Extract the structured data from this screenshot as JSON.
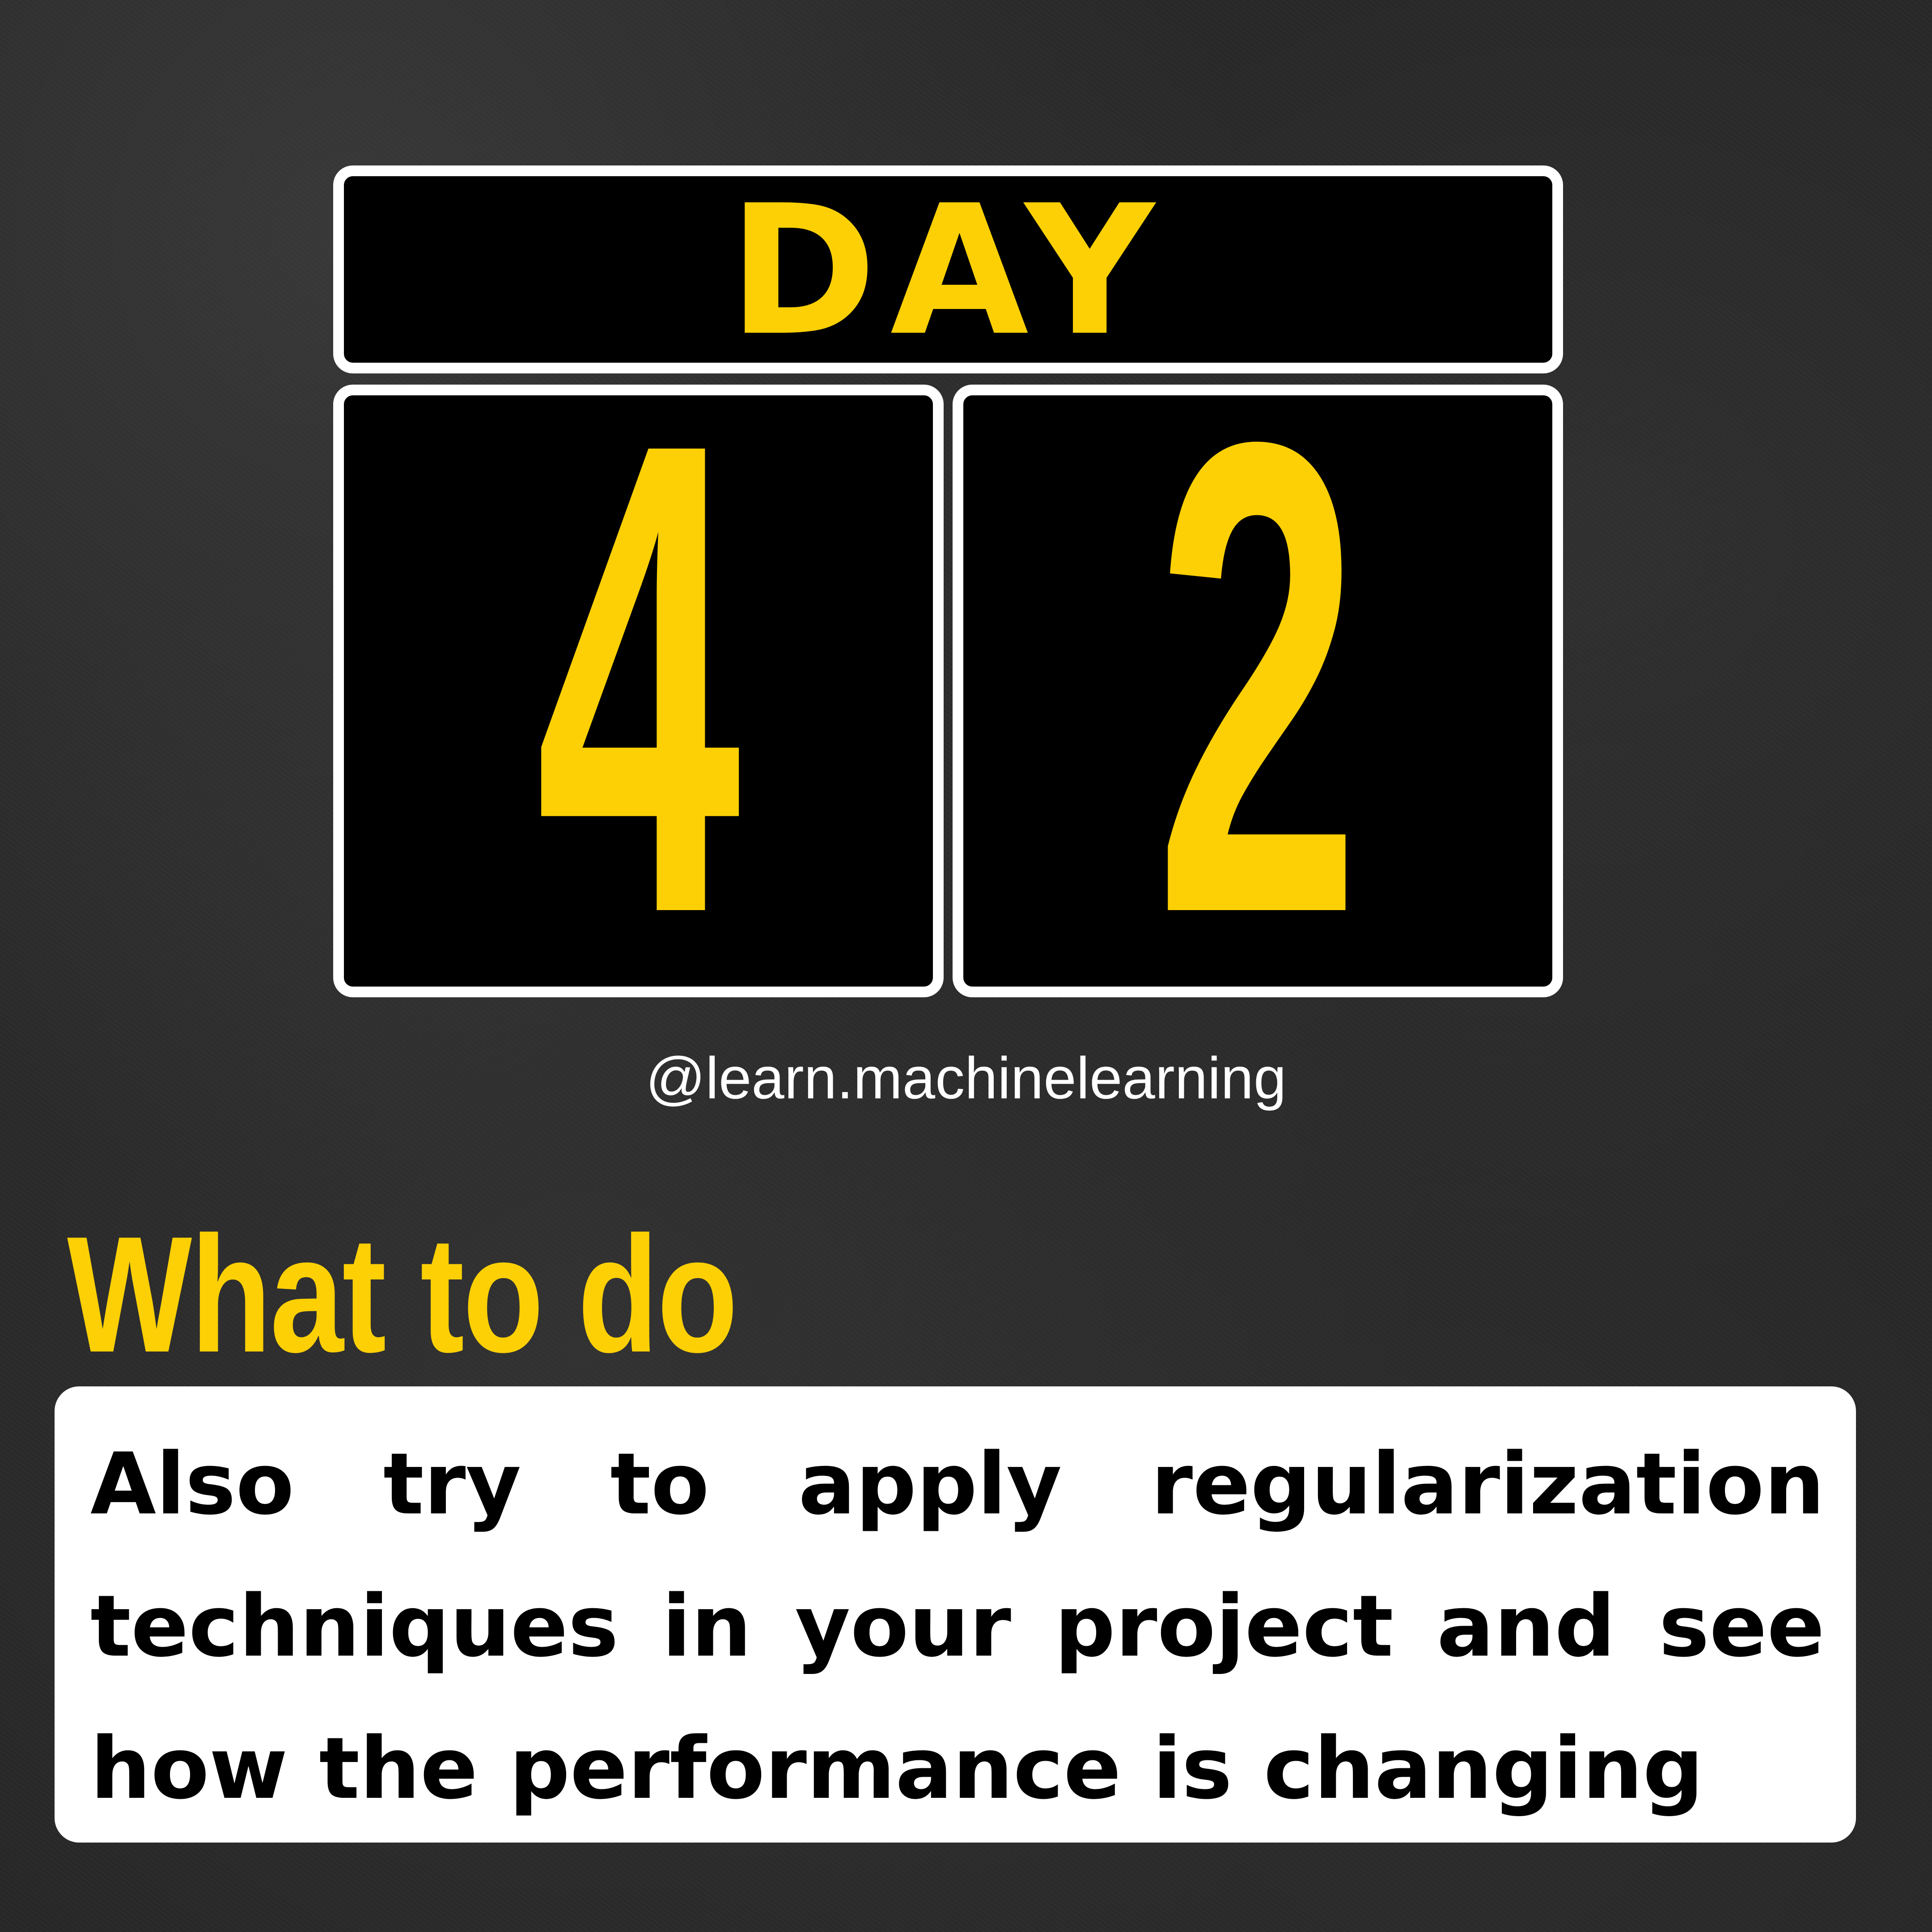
{
  "day_card": {
    "label": "DAY"
  },
  "digits": {
    "tens": "4",
    "ones": "2"
  },
  "handle": "@learn.machinelearning",
  "heading": "What to do",
  "body": "Also try to apply regularization techniques in your project and see how the performance is changing",
  "colors": {
    "accent_yellow": "#FCD004",
    "card_bg": "#000000",
    "card_border": "#FFFFFF",
    "background": "#272727",
    "body_box": "#FFFFFF",
    "body_text": "#000000"
  }
}
